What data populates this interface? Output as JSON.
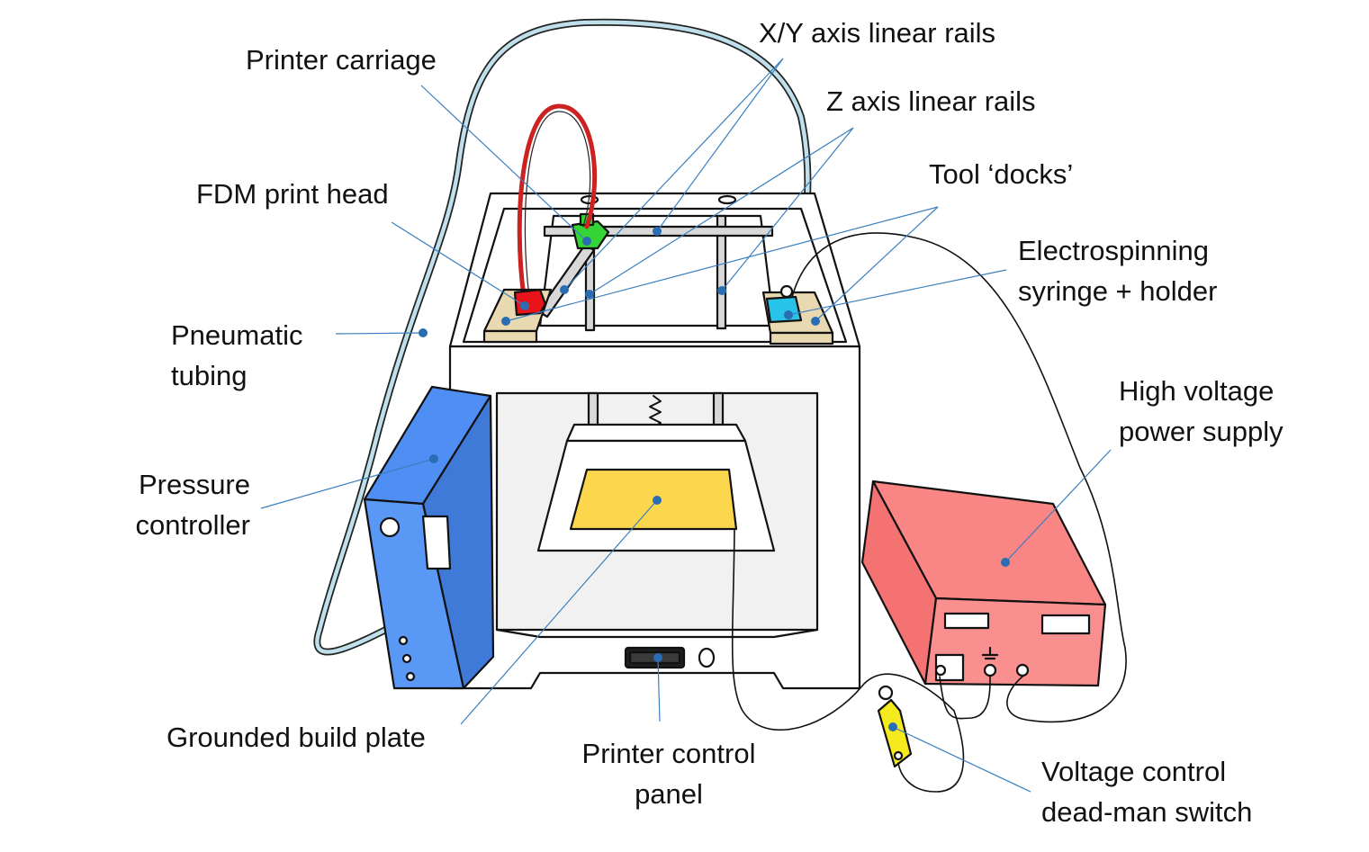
{
  "colors": {
    "leader_line": "#3a7fbf",
    "anchor_dot": "#2a6db3",
    "fdm_head": "#e8141a",
    "carriage": "#35d435",
    "electrospinning_holder": "#27c3e8",
    "tool_dock": "#e8d9b0",
    "pressure_controller": "#4f8ef2",
    "build_plate": "#fcd74e",
    "power_supply": "#f98585",
    "deadman_switch": "#f4ea1e",
    "pneumatic_tubing": "#bfe0ea",
    "heater_cable": "#cc2222"
  },
  "labels": {
    "printer_carriage": "Printer carriage",
    "xy_rails": "X/Y axis linear rails",
    "z_rails": "Z axis linear rails",
    "fdm_head": "FDM print head",
    "tool_docks": "Tool ‘docks’",
    "electrospinning": [
      "Electrospinning",
      "syringe + holder"
    ],
    "pneumatic": [
      "Pneumatic",
      "tubing"
    ],
    "high_voltage": [
      "High voltage",
      "power supply"
    ],
    "pressure_controller": [
      "Pressure",
      "controller"
    ],
    "grounded_plate": "Grounded build plate",
    "control_panel": [
      "Printer control",
      "panel"
    ],
    "deadman": [
      "Voltage control",
      "dead-man switch"
    ]
  }
}
